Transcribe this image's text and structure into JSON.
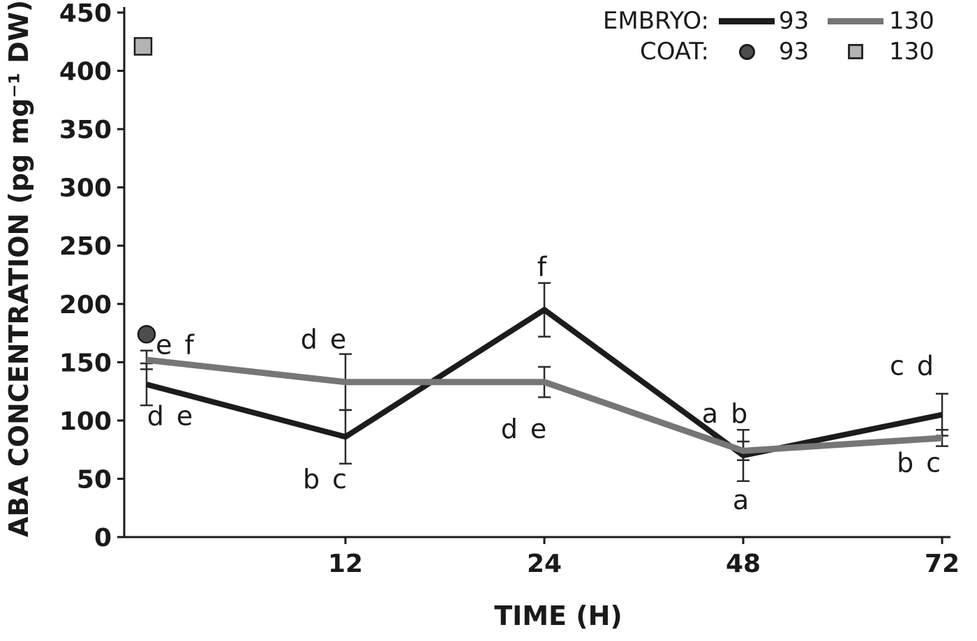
{
  "page": {
    "background": "#ffffff"
  },
  "chart_data": {
    "type": "line",
    "title": "",
    "xlabel": "TIME (H)",
    "ylabel": "ABA CONCENTRATION (pg mg⁻¹ DW)",
    "x_values": [
      0,
      12,
      24,
      48,
      72
    ],
    "x_ticks": [
      {
        "index": 1,
        "label": "12"
      },
      {
        "index": 2,
        "label": "24"
      },
      {
        "index": 3,
        "label": "48"
      },
      {
        "index": 4,
        "label": "72"
      }
    ],
    "ylim": [
      0,
      450
    ],
    "y_ticks": [
      0,
      50,
      100,
      150,
      200,
      250,
      300,
      350,
      400,
      450
    ],
    "grid": false,
    "series": [
      {
        "name": "EMBRYO 93",
        "color": "#1c1c1c",
        "values": [
          131,
          86,
          195,
          70,
          105
        ],
        "error": [
          18,
          23,
          23,
          22,
          18
        ]
      },
      {
        "name": "EMBRYO 130",
        "color": "#767676",
        "values": [
          152,
          133,
          133,
          74,
          85
        ],
        "error": [
          8,
          24,
          13,
          8,
          7
        ]
      }
    ],
    "points": [
      {
        "name": "COAT 93",
        "shape": "circle",
        "color": "#4d4d4d",
        "x_index": 0,
        "value": 174
      },
      {
        "name": "COAT 130",
        "shape": "square",
        "color": "#b3b3b3",
        "x_index": 0,
        "value": 421
      }
    ],
    "annotations": [
      {
        "text": "e f",
        "x_index": 0,
        "value": 157,
        "dx": 42
      },
      {
        "text": "d e",
        "x_index": 0,
        "value": 96,
        "dx": 35
      },
      {
        "text": "d e",
        "x_index": 1,
        "value": 162,
        "dx": -30
      },
      {
        "text": "b c",
        "x_index": 1,
        "value": 42,
        "dx": -28
      },
      {
        "text": "f",
        "x_index": 2,
        "value": 224,
        "dx": -2
      },
      {
        "text": "d e",
        "x_index": 2,
        "value": 85,
        "dx": -28
      },
      {
        "text": "a b",
        "x_index": 3,
        "value": 98,
        "dx": -25
      },
      {
        "text": "a",
        "x_index": 3,
        "value": 24,
        "dx": -2
      },
      {
        "text": "c d",
        "x_index": 4,
        "value": 139,
        "dx": -42
      },
      {
        "text": "b c",
        "x_index": 4,
        "value": 56,
        "dx": -32
      }
    ],
    "legend": {
      "position": "top-right",
      "embryo_label": "EMBRYO:",
      "coat_label": "COAT:",
      "embryo_93_label": "93",
      "embryo_130_label": "130",
      "coat_93_label": "93",
      "coat_130_label": "130"
    }
  }
}
